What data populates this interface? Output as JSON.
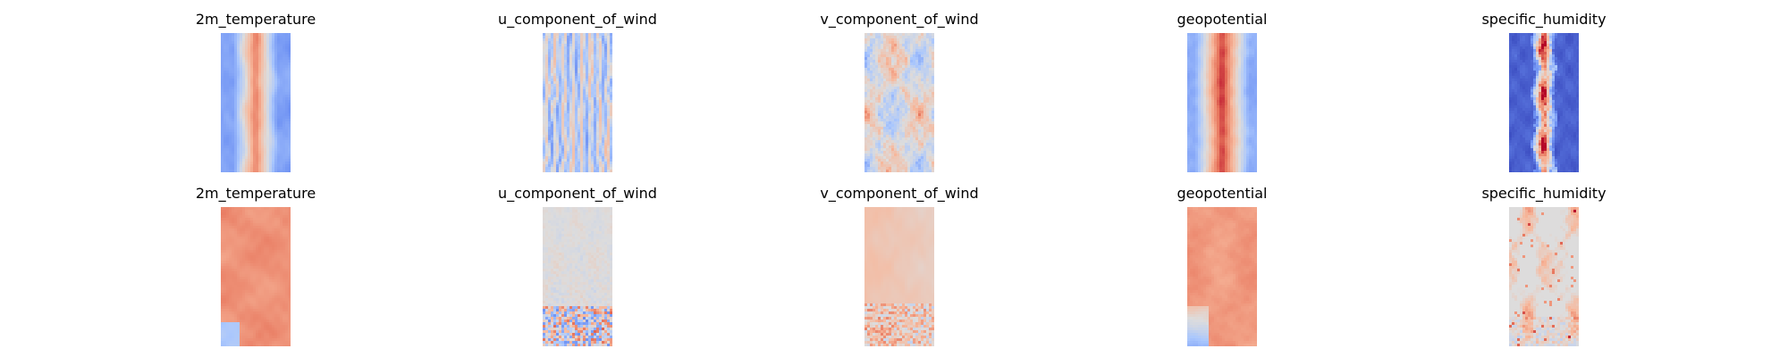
{
  "figure": {
    "colormap": "coolwarm",
    "colormap_stops": [
      "#3b4cc0",
      "#6f92f3",
      "#aac7fd",
      "#dddcdc",
      "#f7b89c",
      "#e7745b",
      "#b40426"
    ]
  },
  "chart_data": [
    {
      "type": "heatmap",
      "title": "2m_temperature",
      "row": 0,
      "col": 0,
      "grid": false,
      "axes": "off",
      "field_description": "warm band down the center, cooler blue edges on both sides",
      "pattern": "central_warm_band",
      "dominant_colors": [
        "#e7745b",
        "#6f92f3",
        "#aac7fd"
      ]
    },
    {
      "type": "heatmap",
      "title": "u_component_of_wind",
      "row": 0,
      "col": 1,
      "grid": false,
      "axes": "off",
      "field_description": "vertical streaks alternating blue and light red",
      "pattern": "vertical_streaks",
      "dominant_colors": [
        "#aac7fd",
        "#6f92f3",
        "#f7b89c"
      ]
    },
    {
      "type": "heatmap",
      "title": "v_component_of_wind",
      "row": 0,
      "col": 2,
      "grid": false,
      "axes": "off",
      "field_description": "patchy blobs of red and blue",
      "pattern": "patchy_blobs",
      "dominant_colors": [
        "#f7b89c",
        "#aac7fd",
        "#e7745b"
      ]
    },
    {
      "type": "heatmap",
      "title": "geopotential",
      "row": 0,
      "col": 3,
      "grid": false,
      "axes": "off",
      "field_description": "wide red center with blue edges",
      "pattern": "wide_central_band",
      "dominant_colors": [
        "#e7745b",
        "#b40426",
        "#6f92f3"
      ]
    },
    {
      "type": "heatmap",
      "title": "specific_humidity",
      "row": 0,
      "col": 4,
      "grid": false,
      "axes": "off",
      "field_description": "deep blue background with thin red streak down the middle",
      "pattern": "thin_central_streak",
      "dominant_colors": [
        "#3b4cc0",
        "#b40426",
        "#aac7fd"
      ]
    },
    {
      "type": "heatmap",
      "title": "2m_temperature",
      "row": 1,
      "col": 0,
      "grid": false,
      "axes": "off",
      "field_description": "mostly warm red field with a bit of blue near the bottom left",
      "pattern": "mostly_warm",
      "dominant_colors": [
        "#e7745b",
        "#f7b89c",
        "#6f92f3"
      ]
    },
    {
      "type": "heatmap",
      "title": "u_component_of_wind",
      "row": 1,
      "col": 1,
      "grid": false,
      "axes": "off",
      "field_description": "near-neutral gray with speckles, stronger red/blue near the bottom",
      "pattern": "neutral_speckle",
      "dominant_colors": [
        "#dddcdc",
        "#f7b89c",
        "#aac7fd"
      ]
    },
    {
      "type": "heatmap",
      "title": "v_component_of_wind",
      "row": 1,
      "col": 2,
      "grid": false,
      "axes": "off",
      "field_description": "pale pink/neutral field, speckled bottom",
      "pattern": "pale_speckle",
      "dominant_colors": [
        "#f7b89c",
        "#dddcdc",
        "#aac7fd"
      ]
    },
    {
      "type": "heatmap",
      "title": "geopotential",
      "row": 1,
      "col": 3,
      "grid": false,
      "axes": "off",
      "field_description": "warm red field with blue near bottom left",
      "pattern": "mostly_warm_blue_bottom",
      "dominant_colors": [
        "#e7745b",
        "#f7b89c",
        "#6f92f3"
      ]
    },
    {
      "type": "heatmap",
      "title": "specific_humidity",
      "row": 1,
      "col": 4,
      "grid": false,
      "axes": "off",
      "field_description": "neutral gray with pale red patches and a few red spots",
      "pattern": "neutral_patches",
      "dominant_colors": [
        "#dddcdc",
        "#f7b89c",
        "#e7745b"
      ]
    }
  ]
}
